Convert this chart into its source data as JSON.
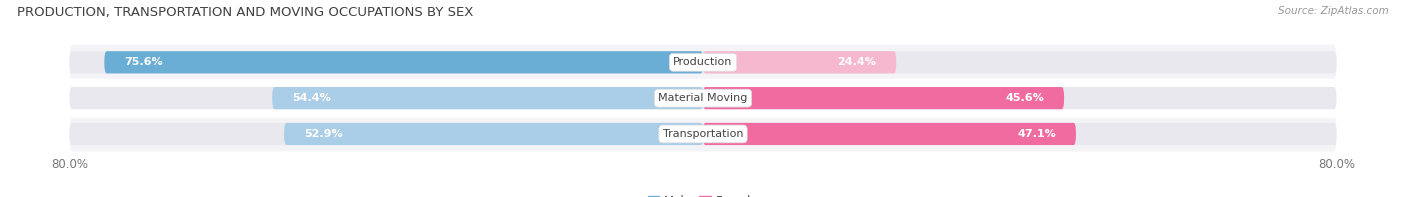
{
  "title": "PRODUCTION, TRANSPORTATION AND MOVING OCCUPATIONS BY SEX",
  "source": "Source: ZipAtlas.com",
  "categories": [
    "Production",
    "Material Moving",
    "Transportation"
  ],
  "male_values": [
    75.6,
    54.4,
    52.9
  ],
  "female_values": [
    24.4,
    45.6,
    47.1
  ],
  "x_min": -80.0,
  "x_max": 80.0,
  "male_color_dark": "#6aadd5",
  "male_color_light": "#aacde8",
  "female_color_dark": "#f06ca0",
  "female_color_light": "#f5b8cf",
  "bg_color": "#ffffff",
  "bar_bg_color": "#e8e8ee",
  "row_bg_color": "#f4f4f7",
  "label_color": "#555555",
  "title_color": "#404040",
  "legend_male_color": "#6aadd5",
  "legend_female_color": "#f06ca0",
  "tick_label_color": "#777777"
}
